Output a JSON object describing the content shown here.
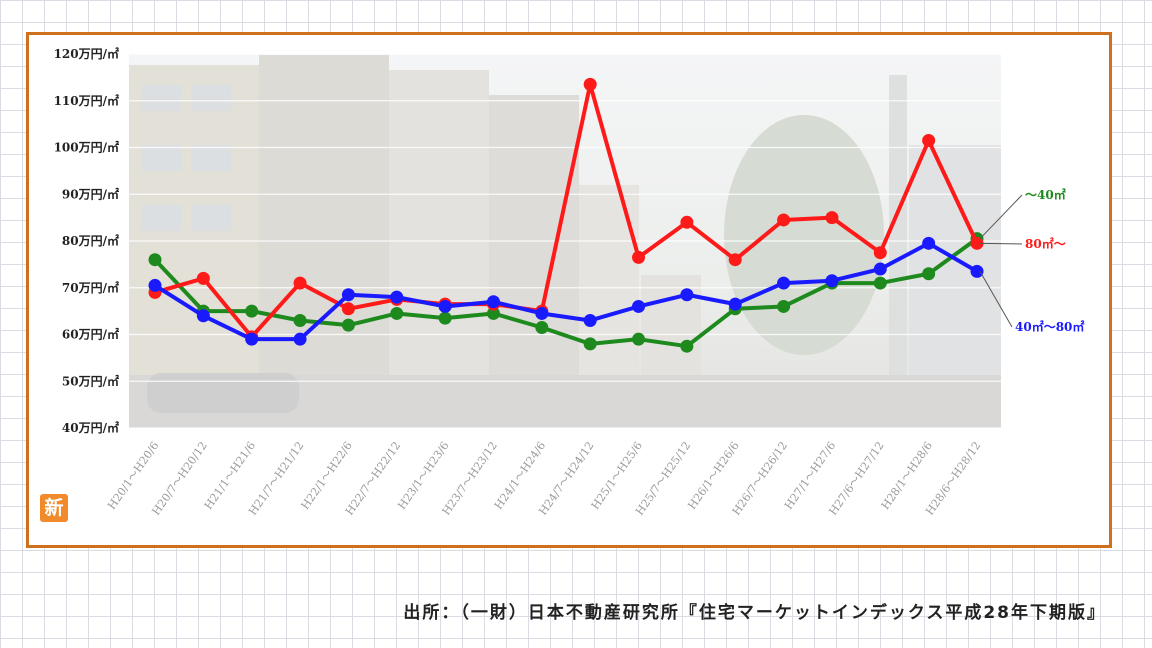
{
  "badge_text": "新",
  "source_note": "出所：（一財）日本不動産研究所『住宅マーケットインデックス平成28年下期版』",
  "chart_data": {
    "type": "line",
    "y_unit": "万円/㎡",
    "ylim": [
      40,
      120
    ],
    "y_ticks": [
      "120万円/㎡",
      "110万円/㎡",
      "100万円/㎡",
      "90万円/㎡",
      "80万円/㎡",
      "70万円/㎡",
      "60万円/㎡",
      "50万円/㎡",
      "40万円/㎡"
    ],
    "categories": [
      "H20/1～H20/6",
      "H20/7～H20/12",
      "H21/1～H21/6",
      "H21/7～H21/12",
      "H22/1～H22/6",
      "H22/7～H22/12",
      "H23/1～H23/6",
      "H23/7～H23/12",
      "H24/1～H24/6",
      "H24/7～H24/12",
      "H25/1～H25/6",
      "H25/7～H25/12",
      "H26/1～H26/6",
      "H26/7～H26/12",
      "H27/1～H27/6",
      "H27/6～H27/12",
      "H28/1～H28/6",
      "H28/6～H28/12"
    ],
    "grid": true,
    "series": [
      {
        "name": "～40㎡",
        "color": "#1e8a1e",
        "values": [
          76,
          65,
          65,
          63,
          62,
          64.5,
          63.5,
          64.5,
          61.5,
          58,
          59,
          57.5,
          65.5,
          66,
          71,
          71,
          73,
          80.5
        ]
      },
      {
        "name": "80㎡～",
        "color": "#ff1a1a",
        "values": [
          69,
          72,
          59.5,
          71,
          65.5,
          67.5,
          66.5,
          66.5,
          65,
          113.5,
          76.5,
          84,
          76,
          84.5,
          85,
          77.5,
          101.5,
          79.5
        ]
      },
      {
        "name": "40㎡～80㎡",
        "color": "#1a1aff",
        "values": [
          70.5,
          64,
          59,
          59,
          68.5,
          68,
          66,
          67,
          64.5,
          63,
          66,
          68.5,
          66.5,
          71,
          71.5,
          74,
          79.5,
          73.5
        ]
      }
    ]
  }
}
